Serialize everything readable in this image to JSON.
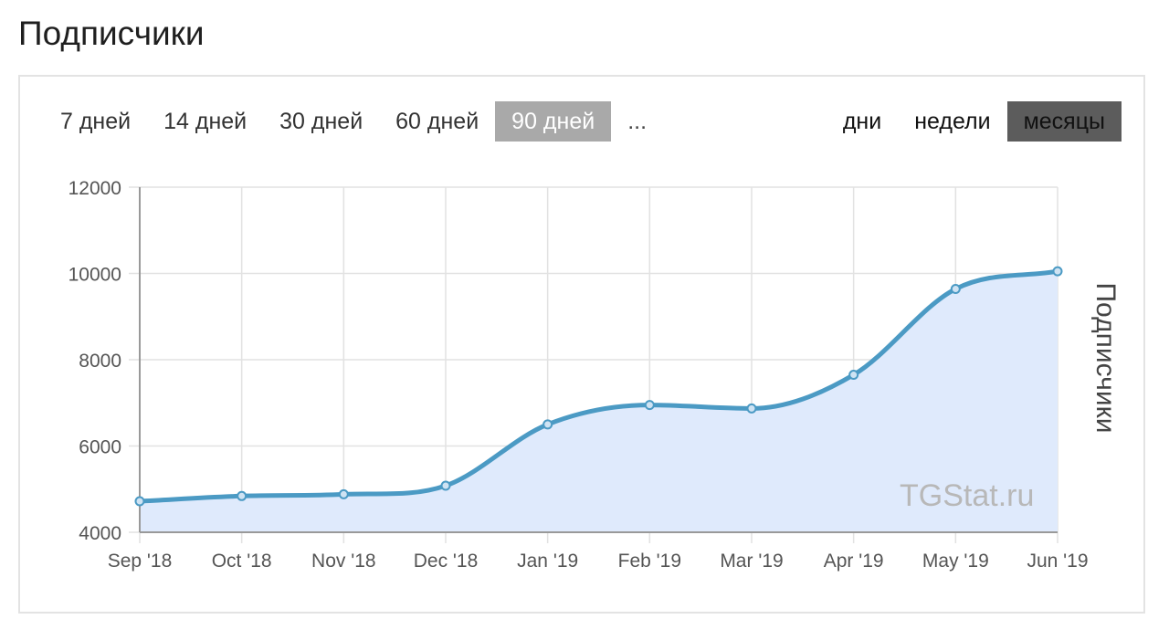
{
  "header": {
    "title": "Подписчики"
  },
  "range_tabs": [
    {
      "label": "7 дней",
      "active": false
    },
    {
      "label": "14 дней",
      "active": false
    },
    {
      "label": "30 дней",
      "active": false
    },
    {
      "label": "60 дней",
      "active": false
    },
    {
      "label": "90 дней",
      "active": true
    },
    {
      "label": "...",
      "active": false
    }
  ],
  "scale_tabs": [
    {
      "label": "дни",
      "active": false
    },
    {
      "label": "недели",
      "active": false
    },
    {
      "label": "месяцы",
      "active": true
    }
  ],
  "watermark": "TGStat.ru",
  "colors": {
    "line": "#4b9ac4",
    "area": "#dfeafc",
    "grid": "#e2e2e2",
    "axis": "#999999",
    "tab_active_light": "#a9a9a9",
    "tab_active_dark": "#5c5c5c"
  },
  "chart_data": {
    "type": "area",
    "x": [
      "Sep '18",
      "Oct '18",
      "Nov '18",
      "Dec '18",
      "Jan '19",
      "Feb '19",
      "Mar '19",
      "Apr '19",
      "May '19",
      "Jun '19"
    ],
    "series": [
      {
        "name": "",
        "values": [
          4720,
          4840,
          4880,
          5080,
          6500,
          6950,
          6870,
          7650,
          9640,
          10050
        ]
      }
    ],
    "ylabel": "Подписчики",
    "xlabel": "",
    "ylim": [
      4000,
      12000
    ],
    "yticks": [
      4000,
      6000,
      8000,
      10000,
      12000
    ],
    "grid": true,
    "legend": "none"
  }
}
